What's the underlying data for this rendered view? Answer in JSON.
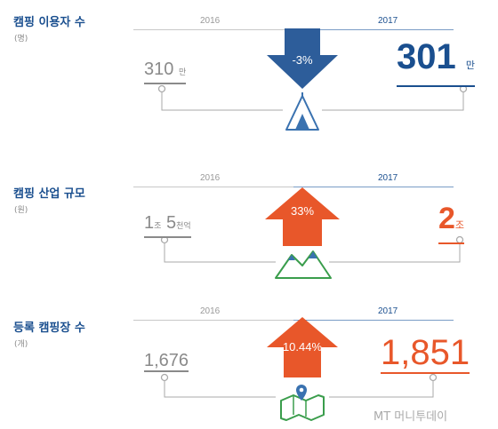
{
  "chart_data": [
    {
      "type": "infographic-comparison",
      "title": "캠핑 이용자 수",
      "unit_label": "(명)",
      "years": [
        "2016",
        "2017"
      ],
      "values": [
        310,
        301
      ],
      "value_labels": [
        "310",
        "301"
      ],
      "unit_suffix": "만",
      "change": "-3%",
      "direction": "down",
      "icon": "tent-icon",
      "colors": {
        "arrow": "#2d5d9a",
        "value_2017": "#1a4f8f"
      }
    },
    {
      "type": "infographic-comparison",
      "title": "캠핑 산업 규모",
      "unit_label": "(원)",
      "years": [
        "2016",
        "2017"
      ],
      "values": [
        1.5,
        2
      ],
      "value_2016_parts": {
        "num1": "1",
        "unit1": "조",
        "num2": "5",
        "unit2": "천억"
      },
      "value_2017_parts": {
        "num": "2",
        "unit": "조"
      },
      "change": "33%",
      "direction": "up",
      "icon": "mountain-icon",
      "colors": {
        "arrow": "#e8572a",
        "value_2017": "#e8572a"
      }
    },
    {
      "type": "infographic-comparison",
      "title": "등록 캠핑장 수",
      "unit_label": "(개)",
      "years": [
        "2016",
        "2017"
      ],
      "values": [
        1676,
        1851
      ],
      "value_labels": [
        "1,676",
        "1,851"
      ],
      "change": "10.44%",
      "direction": "up",
      "icon": "map-pin-icon",
      "colors": {
        "arrow": "#e8572a",
        "value_2017": "#e8572a"
      }
    }
  ],
  "watermark": "MT 머니투데이"
}
